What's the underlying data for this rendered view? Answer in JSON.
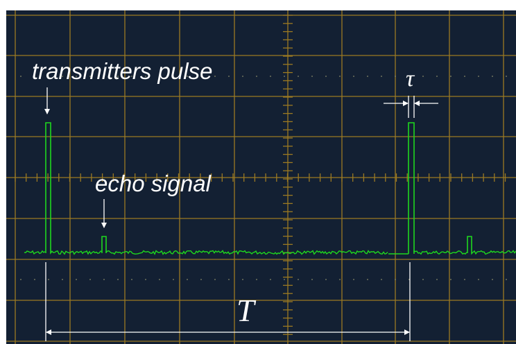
{
  "labels": {
    "transmitter_pulse": "transmitters pulse",
    "echo_signal": "echo signal",
    "pulse_width": "τ",
    "period": "T"
  },
  "colors": {
    "screen_background": "#132033",
    "grid": "#9c7a22",
    "trace": "#1ed81e",
    "annotation": "#ffffff"
  }
}
